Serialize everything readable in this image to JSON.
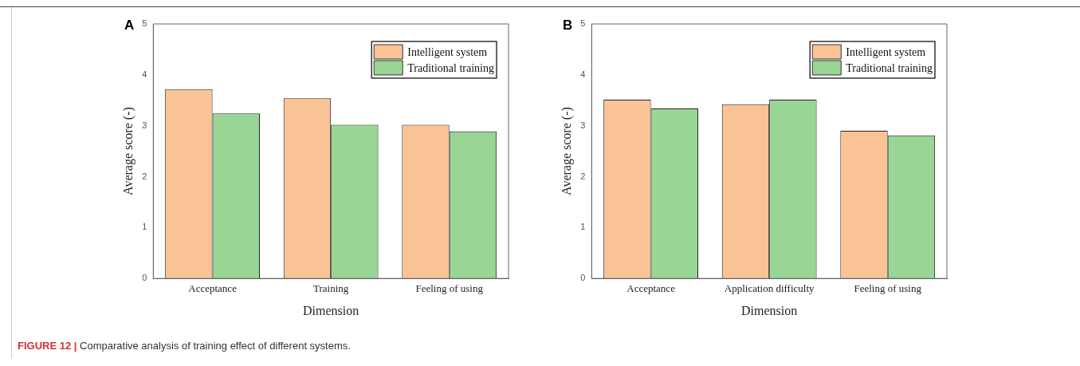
{
  "chart_data": [
    {
      "type": "bar",
      "title": "A",
      "xlabel": "Dimension",
      "ylabel": "Average score (-)",
      "categories": [
        "Acceptance",
        "Training",
        "Feeling of using"
      ],
      "series": [
        {
          "name": "Intelligent system",
          "color": "#fac395",
          "values": [
            3.72,
            3.54,
            3.02
          ]
        },
        {
          "name": "Traditional training",
          "color": "#99d595",
          "values": [
            3.24,
            3.02,
            2.89
          ]
        }
      ],
      "ylim": [
        0,
        5
      ],
      "yticks": [
        0,
        1,
        2,
        3,
        4,
        5
      ],
      "legend": "top right",
      "annotations": [
        "FIGURE 12 | Comparative analysis of training effect of different systems."
      ]
    },
    {
      "type": "bar",
      "title": "B",
      "xlabel": "Dimension",
      "ylabel": "Average score (-)",
      "categories": [
        "Acceptance",
        "Application difficulty",
        "Feeling of using"
      ],
      "series": [
        {
          "name": "Intelligent system",
          "color": "#fac395",
          "values": [
            3.51,
            3.42,
            2.9
          ]
        },
        {
          "name": "Traditional training",
          "color": "#99d595",
          "values": [
            3.34,
            3.51,
            2.81
          ]
        }
      ],
      "ylim": [
        0,
        5
      ],
      "yticks": [
        0,
        1,
        2,
        3,
        4,
        5
      ],
      "legend": "top right"
    }
  ]
}
